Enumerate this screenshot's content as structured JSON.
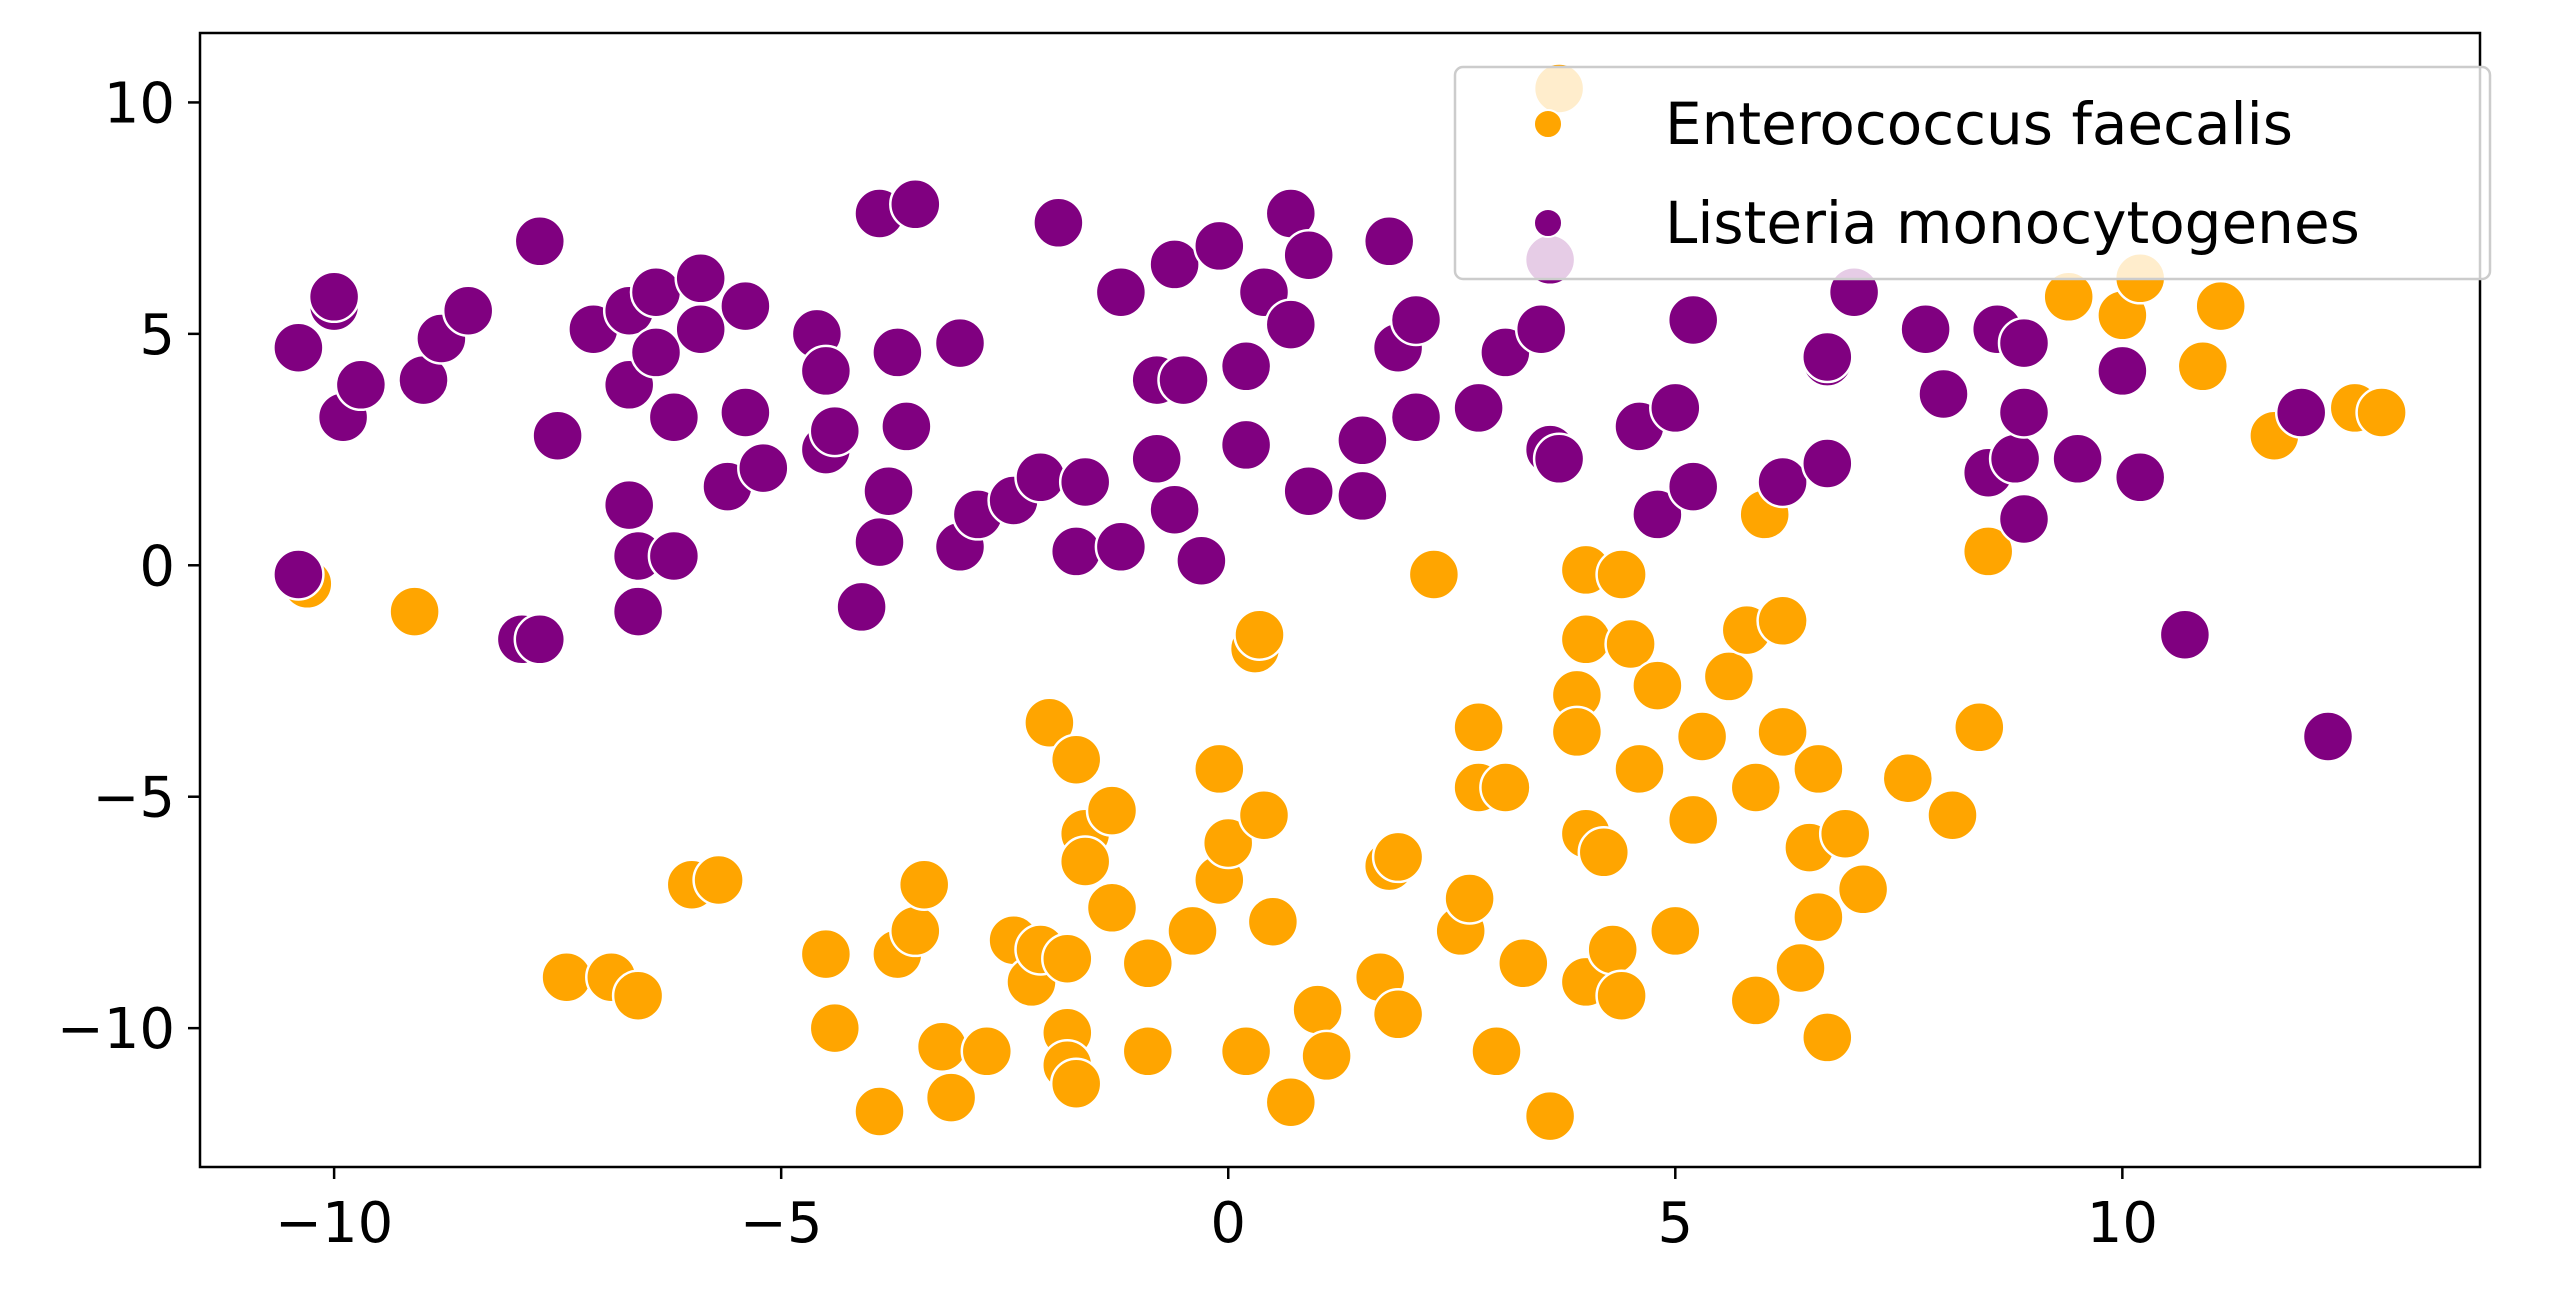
{
  "chart_data": {
    "type": "scatter",
    "title": "",
    "xlabel": "",
    "ylabel": "",
    "xlim": [
      -11.5,
      14.0
    ],
    "ylim": [
      -13.0,
      11.5
    ],
    "xticks": [
      -10,
      -5,
      0,
      5,
      10
    ],
    "yticks": [
      -10,
      -5,
      0,
      5,
      10
    ],
    "xtick_labels": [
      "−10",
      "−5",
      "0",
      "5",
      "10"
    ],
    "ytick_labels": [
      "−10",
      "−5",
      "0",
      "5",
      "10"
    ],
    "grid": false,
    "legend_position": "top-right",
    "series": [
      {
        "name": "Enterococcus faecalis",
        "color": "#FFA500",
        "points": [
          [
            -10.3,
            -0.4
          ],
          [
            -9.1,
            -1.0
          ],
          [
            -7.4,
            -8.9
          ],
          [
            -6.9,
            -8.9
          ],
          [
            -6.6,
            -9.3
          ],
          [
            -6.0,
            -6.9
          ],
          [
            -5.7,
            -6.8
          ],
          [
            -4.5,
            -8.4
          ],
          [
            -4.4,
            -10.0
          ],
          [
            -3.9,
            -11.8
          ],
          [
            -3.7,
            -8.4
          ],
          [
            -3.5,
            -7.9
          ],
          [
            -3.4,
            -6.9
          ],
          [
            -3.2,
            -10.4
          ],
          [
            -3.1,
            -11.5
          ],
          [
            -2.7,
            -10.5
          ],
          [
            -2.4,
            -8.1
          ],
          [
            -2.2,
            -9.0
          ],
          [
            -2.1,
            -8.3
          ],
          [
            -2.0,
            -3.4
          ],
          [
            -1.8,
            -8.5
          ],
          [
            -1.8,
            -10.1
          ],
          [
            -1.8,
            -10.8
          ],
          [
            -1.7,
            -11.2
          ],
          [
            -1.7,
            -4.2
          ],
          [
            -1.6,
            -5.8
          ],
          [
            -1.6,
            -6.4
          ],
          [
            -1.3,
            -5.3
          ],
          [
            -1.3,
            -7.4
          ],
          [
            -0.9,
            -8.6
          ],
          [
            -0.9,
            -10.5
          ],
          [
            -0.4,
            -7.9
          ],
          [
            -0.1,
            -4.4
          ],
          [
            -0.1,
            -6.8
          ],
          [
            0.0,
            -6.0
          ],
          [
            0.2,
            -10.5
          ],
          [
            0.3,
            -1.8
          ],
          [
            0.35,
            -1.5
          ],
          [
            0.4,
            -5.4
          ],
          [
            0.5,
            -7.7
          ],
          [
            0.7,
            -11.6
          ],
          [
            1.0,
            -9.6
          ],
          [
            1.1,
            -10.6
          ],
          [
            1.7,
            -8.9
          ],
          [
            1.8,
            -6.5
          ],
          [
            1.9,
            -6.3
          ],
          [
            1.9,
            -9.7
          ],
          [
            2.3,
            -0.2
          ],
          [
            2.6,
            -7.9
          ],
          [
            2.7,
            -7.2
          ],
          [
            2.8,
            -4.8
          ],
          [
            2.8,
            -3.5
          ],
          [
            3.0,
            -10.5
          ],
          [
            3.1,
            -4.8
          ],
          [
            3.3,
            -8.6
          ],
          [
            3.6,
            -11.9
          ],
          [
            3.7,
            10.3
          ],
          [
            3.9,
            -2.8
          ],
          [
            3.9,
            -3.6
          ],
          [
            4.0,
            -0.1
          ],
          [
            4.0,
            -1.6
          ],
          [
            4.0,
            -5.8
          ],
          [
            4.0,
            -9.0
          ],
          [
            4.2,
            -6.2
          ],
          [
            4.3,
            -8.3
          ],
          [
            4.4,
            -0.2
          ],
          [
            4.4,
            -9.3
          ],
          [
            4.5,
            -1.7
          ],
          [
            4.6,
            -4.4
          ],
          [
            4.8,
            -2.6
          ],
          [
            5.0,
            -7.9
          ],
          [
            5.2,
            -5.5
          ],
          [
            5.3,
            -3.7
          ],
          [
            5.6,
            -2.4
          ],
          [
            5.8,
            -1.4
          ],
          [
            5.9,
            -4.8
          ],
          [
            5.9,
            -9.4
          ],
          [
            6.0,
            1.1
          ],
          [
            6.2,
            -1.2
          ],
          [
            6.2,
            -3.6
          ],
          [
            6.4,
            -8.7
          ],
          [
            6.5,
            -6.1
          ],
          [
            6.6,
            -4.4
          ],
          [
            6.6,
            -7.6
          ],
          [
            6.7,
            -10.2
          ],
          [
            6.9,
            -5.8
          ],
          [
            7.1,
            -7.0
          ],
          [
            7.6,
            -4.6
          ],
          [
            8.1,
            -5.4
          ],
          [
            8.4,
            -3.5
          ],
          [
            8.5,
            0.3
          ],
          [
            9.4,
            5.8
          ],
          [
            10.0,
            5.4
          ],
          [
            10.2,
            6.2
          ],
          [
            10.9,
            4.3
          ],
          [
            11.1,
            5.6
          ],
          [
            11.7,
            2.8
          ],
          [
            12.6,
            3.4
          ],
          [
            12.9,
            3.3
          ]
        ]
      },
      {
        "name": "Listeria monocytogenes",
        "color": "#800080",
        "points": [
          [
            -10.4,
            4.7
          ],
          [
            -10.4,
            -0.2
          ],
          [
            -10.0,
            5.6
          ],
          [
            -10.0,
            5.8
          ],
          [
            -9.9,
            3.2
          ],
          [
            -9.7,
            3.9
          ],
          [
            -9.0,
            4.0
          ],
          [
            -8.8,
            4.9
          ],
          [
            -8.5,
            5.5
          ],
          [
            -7.9,
            -1.6
          ],
          [
            -7.7,
            7.0
          ],
          [
            -7.7,
            -1.6
          ],
          [
            -7.5,
            2.8
          ],
          [
            -7.1,
            5.1
          ],
          [
            -6.7,
            5.5
          ],
          [
            -6.7,
            3.9
          ],
          [
            -6.7,
            1.3
          ],
          [
            -6.6,
            0.2
          ],
          [
            -6.6,
            -1.0
          ],
          [
            -6.4,
            5.9
          ],
          [
            -6.4,
            4.6
          ],
          [
            -6.2,
            3.2
          ],
          [
            -6.2,
            0.2
          ],
          [
            -5.9,
            6.2
          ],
          [
            -5.9,
            5.1
          ],
          [
            -5.6,
            1.7
          ],
          [
            -5.4,
            5.6
          ],
          [
            -5.4,
            3.3
          ],
          [
            -5.2,
            2.1
          ],
          [
            -4.6,
            5.0
          ],
          [
            -4.5,
            4.2
          ],
          [
            -4.5,
            2.5
          ],
          [
            -4.4,
            2.9
          ],
          [
            -4.1,
            -0.9
          ],
          [
            -3.9,
            7.6
          ],
          [
            -3.9,
            0.5
          ],
          [
            -3.8,
            1.6
          ],
          [
            -3.7,
            4.6
          ],
          [
            -3.6,
            3.0
          ],
          [
            -3.5,
            7.8
          ],
          [
            -3.0,
            4.8
          ],
          [
            -3.0,
            0.4
          ],
          [
            -2.8,
            1.1
          ],
          [
            -2.4,
            1.4
          ],
          [
            -2.1,
            1.9
          ],
          [
            -1.9,
            7.4
          ],
          [
            -1.7,
            0.3
          ],
          [
            -1.6,
            1.8
          ],
          [
            -1.2,
            5.9
          ],
          [
            -1.2,
            0.4
          ],
          [
            -0.8,
            4.0
          ],
          [
            -0.8,
            2.3
          ],
          [
            -0.6,
            6.5
          ],
          [
            -0.6,
            1.2
          ],
          [
            -0.5,
            4.0
          ],
          [
            -0.3,
            0.1
          ],
          [
            -0.1,
            6.9
          ],
          [
            0.2,
            2.6
          ],
          [
            0.2,
            4.3
          ],
          [
            0.4,
            5.9
          ],
          [
            0.7,
            7.6
          ],
          [
            0.7,
            5.2
          ],
          [
            0.9,
            6.7
          ],
          [
            0.9,
            1.6
          ],
          [
            1.5,
            2.7
          ],
          [
            1.5,
            1.5
          ],
          [
            1.8,
            7.0
          ],
          [
            1.9,
            4.7
          ],
          [
            2.1,
            5.3
          ],
          [
            2.1,
            3.2
          ],
          [
            2.8,
            3.4
          ],
          [
            3.1,
            4.6
          ],
          [
            3.5,
            5.1
          ],
          [
            3.6,
            2.5
          ],
          [
            3.6,
            6.6
          ],
          [
            3.7,
            2.3
          ],
          [
            4.6,
            3.0
          ],
          [
            4.8,
            1.1
          ],
          [
            5.0,
            3.4
          ],
          [
            5.2,
            5.3
          ],
          [
            5.2,
            1.7
          ],
          [
            6.2,
            1.8
          ],
          [
            6.7,
            4.4
          ],
          [
            6.7,
            4.5
          ],
          [
            6.7,
            2.2
          ],
          [
            7.0,
            5.9
          ],
          [
            7.8,
            5.1
          ],
          [
            8.0,
            3.7
          ],
          [
            8.5,
            2.0
          ],
          [
            8.6,
            5.1
          ],
          [
            8.8,
            2.3
          ],
          [
            8.9,
            4.8
          ],
          [
            8.9,
            3.3
          ],
          [
            8.9,
            1.0
          ],
          [
            9.5,
            2.3
          ],
          [
            10.0,
            4.2
          ],
          [
            10.2,
            1.9
          ],
          [
            10.7,
            -1.5
          ],
          [
            12.0,
            3.3
          ],
          [
            12.3,
            -3.7
          ]
        ]
      }
    ]
  }
}
